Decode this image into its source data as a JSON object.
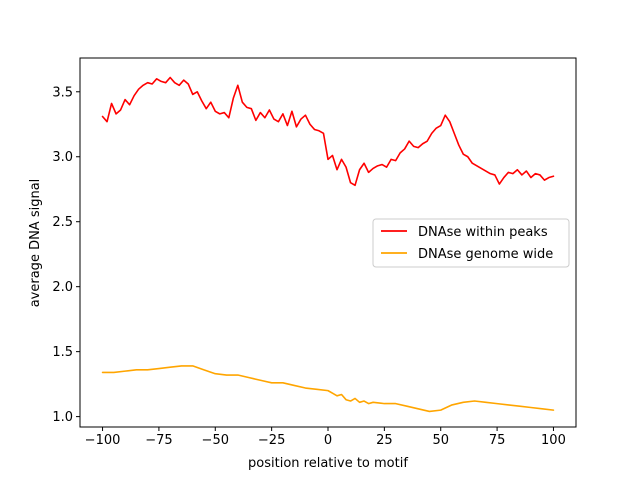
{
  "chart_data": {
    "type": "line",
    "title": "",
    "xlabel": "position relative to motif",
    "ylabel": "average DNA signal",
    "xlim": [
      -110,
      110
    ],
    "ylim": [
      0.92,
      3.76
    ],
    "xticks": [
      -100,
      -75,
      -50,
      -25,
      0,
      25,
      50,
      75,
      100
    ],
    "xtick_labels": [
      "−100",
      "−75",
      "−50",
      "−25",
      "0",
      "25",
      "50",
      "75",
      "100"
    ],
    "yticks": [
      1.0,
      1.5,
      2.0,
      2.5,
      3.0,
      3.5
    ],
    "ytick_labels": [
      "1.0",
      "1.5",
      "2.0",
      "2.5",
      "3.0",
      "3.5"
    ],
    "grid": false,
    "legend_position": "center-right",
    "series": [
      {
        "name": "DNAse within peaks",
        "color": "#ff0000",
        "x": [
          -100,
          -98,
          -96,
          -94,
          -92,
          -90,
          -88,
          -86,
          -84,
          -82,
          -80,
          -78,
          -76,
          -74,
          -72,
          -70,
          -68,
          -66,
          -64,
          -62,
          -60,
          -58,
          -56,
          -54,
          -52,
          -50,
          -48,
          -46,
          -44,
          -42,
          -40,
          -38,
          -36,
          -34,
          -32,
          -30,
          -28,
          -26,
          -24,
          -22,
          -20,
          -18,
          -16,
          -14,
          -12,
          -10,
          -8,
          -6,
          -4,
          -2,
          0,
          2,
          4,
          6,
          8,
          10,
          12,
          14,
          16,
          18,
          20,
          22,
          24,
          26,
          28,
          30,
          32,
          34,
          36,
          38,
          40,
          42,
          44,
          46,
          48,
          50,
          52,
          54,
          56,
          58,
          60,
          62,
          64,
          66,
          68,
          70,
          72,
          74,
          76,
          78,
          80,
          82,
          84,
          86,
          88,
          90,
          92,
          94,
          96,
          98,
          100
        ],
        "values": [
          3.31,
          3.27,
          3.41,
          3.33,
          3.36,
          3.44,
          3.4,
          3.47,
          3.52,
          3.55,
          3.57,
          3.56,
          3.6,
          3.58,
          3.57,
          3.61,
          3.57,
          3.55,
          3.59,
          3.56,
          3.48,
          3.5,
          3.43,
          3.37,
          3.42,
          3.35,
          3.33,
          3.34,
          3.3,
          3.45,
          3.55,
          3.42,
          3.38,
          3.37,
          3.28,
          3.34,
          3.3,
          3.36,
          3.29,
          3.27,
          3.33,
          3.24,
          3.35,
          3.23,
          3.29,
          3.32,
          3.25,
          3.21,
          3.2,
          3.18,
          2.98,
          3.01,
          2.9,
          2.98,
          2.92,
          2.8,
          2.78,
          2.9,
          2.95,
          2.88,
          2.91,
          2.93,
          2.94,
          2.92,
          2.98,
          2.97,
          3.03,
          3.06,
          3.12,
          3.08,
          3.07,
          3.1,
          3.12,
          3.18,
          3.22,
          3.24,
          3.32,
          3.27,
          3.18,
          3.09,
          3.02,
          3.0,
          2.95,
          2.93,
          2.91,
          2.89,
          2.87,
          2.86,
          2.79,
          2.84,
          2.88,
          2.87,
          2.9,
          2.86,
          2.89,
          2.84,
          2.87,
          2.86,
          2.82,
          2.84,
          2.85
        ]
      },
      {
        "name": "DNAse genome wide",
        "color": "#ffa500",
        "x": [
          -100,
          -95,
          -90,
          -85,
          -80,
          -75,
          -70,
          -65,
          -60,
          -55,
          -50,
          -45,
          -40,
          -35,
          -30,
          -25,
          -20,
          -15,
          -10,
          -5,
          0,
          2,
          4,
          6,
          8,
          10,
          12,
          14,
          16,
          18,
          20,
          25,
          30,
          35,
          40,
          45,
          50,
          55,
          60,
          65,
          70,
          75,
          80,
          85,
          90,
          95,
          100
        ],
        "values": [
          1.34,
          1.34,
          1.35,
          1.36,
          1.36,
          1.37,
          1.38,
          1.39,
          1.39,
          1.36,
          1.33,
          1.32,
          1.32,
          1.3,
          1.28,
          1.26,
          1.26,
          1.24,
          1.22,
          1.21,
          1.2,
          1.18,
          1.16,
          1.17,
          1.13,
          1.12,
          1.14,
          1.11,
          1.12,
          1.1,
          1.11,
          1.1,
          1.1,
          1.08,
          1.06,
          1.04,
          1.05,
          1.09,
          1.11,
          1.12,
          1.11,
          1.1,
          1.09,
          1.08,
          1.07,
          1.06,
          1.05
        ]
      }
    ]
  }
}
